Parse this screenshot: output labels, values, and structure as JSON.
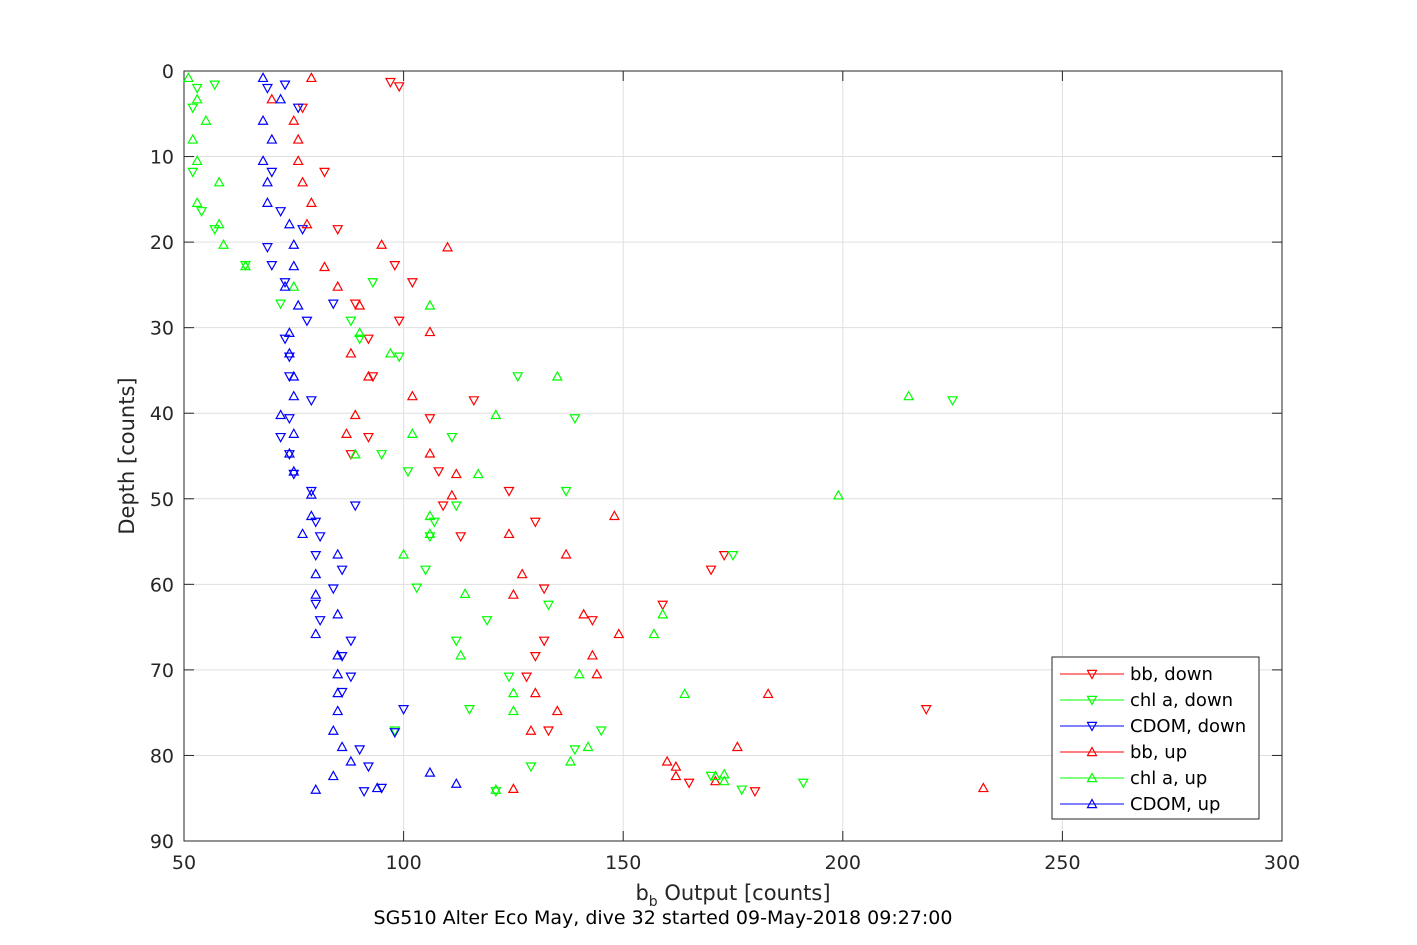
{
  "chart_data": {
    "type": "scatter",
    "title": "SG510 Alter Eco May, dive 32 started 09-May-2018 09:27:00",
    "xlabel": "b",
    "xlabel_sub": "b",
    "xlabel_rest": " Output [counts]",
    "ylabel": "Depth [counts]",
    "xlim": [
      50,
      300
    ],
    "ylim": [
      0,
      90
    ],
    "y_reversed": true,
    "grid": true,
    "legend_position": "bottom-right",
    "x_ticks": [
      50,
      100,
      150,
      200,
      250,
      300
    ],
    "y_ticks": [
      0,
      10,
      20,
      30,
      40,
      50,
      60,
      70,
      80,
      90
    ],
    "series": [
      {
        "name": "bb, down",
        "color": "#ff0000",
        "marker": "triangle-down",
        "points": [
          [
            97,
            1.3
          ],
          [
            99,
            1.8
          ],
          [
            77,
            4.3
          ],
          [
            82,
            11.8
          ],
          [
            85,
            18.5
          ],
          [
            98,
            22.7
          ],
          [
            102,
            24.7
          ],
          [
            89,
            27.2
          ],
          [
            99,
            29.2
          ],
          [
            92,
            31.3
          ],
          [
            93,
            35.7
          ],
          [
            116,
            38.5
          ],
          [
            106,
            40.6
          ],
          [
            92,
            42.8
          ],
          [
            88,
            44.8
          ],
          [
            108,
            46.8
          ],
          [
            124,
            49.1
          ],
          [
            109,
            50.8
          ],
          [
            130,
            52.7
          ],
          [
            113,
            54.4
          ],
          [
            173,
            56.6
          ],
          [
            170,
            58.3
          ],
          [
            132,
            60.5
          ],
          [
            159,
            62.4
          ],
          [
            143,
            64.2
          ],
          [
            132,
            66.6
          ],
          [
            130,
            68.4
          ],
          [
            128,
            70.8
          ],
          [
            133,
            77.1
          ],
          [
            165,
            83.2
          ],
          [
            180,
            84.2
          ],
          [
            219,
            74.6
          ]
        ]
      },
      {
        "name": "chl a, down",
        "color": "#00ff00",
        "marker": "triangle-down",
        "points": [
          [
            57,
            1.6
          ],
          [
            53,
            2.0
          ],
          [
            52,
            4.3
          ],
          [
            52,
            11.8
          ],
          [
            54,
            16.4
          ],
          [
            57,
            18.5
          ],
          [
            64,
            22.7
          ],
          [
            93,
            24.7
          ],
          [
            72,
            27.2
          ],
          [
            88,
            29.2
          ],
          [
            90,
            31.3
          ],
          [
            99,
            33.4
          ],
          [
            126,
            35.7
          ],
          [
            225,
            38.5
          ],
          [
            139,
            40.6
          ],
          [
            111,
            42.8
          ],
          [
            95,
            44.8
          ],
          [
            101,
            46.8
          ],
          [
            137,
            49.1
          ],
          [
            112,
            50.8
          ],
          [
            107,
            52.7
          ],
          [
            106,
            54.4
          ],
          [
            175,
            56.6
          ],
          [
            105,
            58.3
          ],
          [
            103,
            60.4
          ],
          [
            133,
            62.4
          ],
          [
            119,
            64.2
          ],
          [
            112,
            66.6
          ],
          [
            124,
            70.8
          ],
          [
            115,
            74.6
          ],
          [
            145,
            77.1
          ],
          [
            98,
            77.1
          ],
          [
            139,
            79.3
          ],
          [
            129,
            81.3
          ],
          [
            170,
            82.4
          ],
          [
            191,
            83.2
          ],
          [
            177,
            84.0
          ],
          [
            121,
            84.2
          ]
        ]
      },
      {
        "name": "CDOM, down",
        "color": "#0000ff",
        "marker": "triangle-down",
        "points": [
          [
            73,
            1.6
          ],
          [
            69,
            2.0
          ],
          [
            76,
            4.3
          ],
          [
            70,
            11.8
          ],
          [
            72,
            16.4
          ],
          [
            77,
            18.5
          ],
          [
            69,
            20.6
          ],
          [
            70,
            22.7
          ],
          [
            73,
            24.7
          ],
          [
            84,
            27.2
          ],
          [
            78,
            29.2
          ],
          [
            73,
            31.3
          ],
          [
            74,
            33.4
          ],
          [
            74,
            35.7
          ],
          [
            79,
            38.5
          ],
          [
            74,
            40.6
          ],
          [
            72,
            42.8
          ],
          [
            74,
            44.8
          ],
          [
            75,
            47.1
          ],
          [
            79,
            49.1
          ],
          [
            89,
            50.8
          ],
          [
            80,
            52.7
          ],
          [
            81,
            54.4
          ],
          [
            80,
            56.6
          ],
          [
            86,
            58.3
          ],
          [
            84,
            60.5
          ],
          [
            80,
            62.3
          ],
          [
            81,
            64.2
          ],
          [
            88,
            66.6
          ],
          [
            86,
            68.4
          ],
          [
            88,
            70.8
          ],
          [
            86,
            72.6
          ],
          [
            100,
            74.6
          ],
          [
            98,
            77.3
          ],
          [
            90,
            79.3
          ],
          [
            92,
            81.3
          ],
          [
            91,
            84.2
          ],
          [
            95,
            83.8
          ]
        ]
      },
      {
        "name": "bb, up",
        "color": "#ff0000",
        "marker": "triangle-up",
        "points": [
          [
            79,
            0.8
          ],
          [
            70,
            3.3
          ],
          [
            75,
            5.8
          ],
          [
            76,
            8.0
          ],
          [
            76,
            10.5
          ],
          [
            77,
            13.0
          ],
          [
            79,
            15.4
          ],
          [
            78,
            17.9
          ],
          [
            110,
            20.6
          ],
          [
            95,
            20.3
          ],
          [
            82,
            22.9
          ],
          [
            85,
            25.2
          ],
          [
            90,
            27.4
          ],
          [
            106,
            30.5
          ],
          [
            88,
            33.0
          ],
          [
            92,
            35.7
          ],
          [
            102,
            38.0
          ],
          [
            89,
            40.2
          ],
          [
            87,
            42.4
          ],
          [
            106,
            44.7
          ],
          [
            112,
            47.1
          ],
          [
            111,
            49.6
          ],
          [
            148,
            52.0
          ],
          [
            124,
            54.1
          ],
          [
            137,
            56.5
          ],
          [
            127,
            58.8
          ],
          [
            125,
            61.2
          ],
          [
            141,
            63.5
          ],
          [
            149,
            65.8
          ],
          [
            143,
            68.3
          ],
          [
            144,
            70.5
          ],
          [
            130,
            72.7
          ],
          [
            183,
            72.8
          ],
          [
            135,
            74.8
          ],
          [
            129,
            77.1
          ],
          [
            176,
            79.0
          ],
          [
            160,
            80.7
          ],
          [
            162,
            81.3
          ],
          [
            162,
            82.4
          ],
          [
            171,
            83.0
          ],
          [
            232,
            83.8
          ],
          [
            125,
            83.9
          ]
        ]
      },
      {
        "name": "chl a, up",
        "color": "#00ff00",
        "marker": "triangle-up",
        "points": [
          [
            51,
            0.8
          ],
          [
            53,
            3.3
          ],
          [
            55,
            5.8
          ],
          [
            52,
            8.0
          ],
          [
            53,
            10.5
          ],
          [
            58,
            13.0
          ],
          [
            53,
            15.4
          ],
          [
            58,
            17.9
          ],
          [
            59,
            20.3
          ],
          [
            64,
            22.8
          ],
          [
            75,
            25.2
          ],
          [
            106,
            27.4
          ],
          [
            90,
            30.6
          ],
          [
            97,
            33.0
          ],
          [
            135,
            35.7
          ],
          [
            215,
            38.0
          ],
          [
            121,
            40.2
          ],
          [
            102,
            42.4
          ],
          [
            89,
            44.8
          ],
          [
            117,
            47.1
          ],
          [
            199,
            49.6
          ],
          [
            106,
            52.0
          ],
          [
            106,
            54.1
          ],
          [
            100,
            56.5
          ],
          [
            114,
            61.1
          ],
          [
            159,
            63.5
          ],
          [
            157,
            65.8
          ],
          [
            113,
            68.3
          ],
          [
            140,
            70.5
          ],
          [
            164,
            72.8
          ],
          [
            125,
            72.7
          ],
          [
            125,
            74.8
          ],
          [
            142,
            79.0
          ],
          [
            138,
            80.7
          ],
          [
            173,
            82.2
          ],
          [
            171,
            82.4
          ],
          [
            173,
            83.0
          ],
          [
            121,
            84.0
          ]
        ]
      },
      {
        "name": "CDOM, up",
        "color": "#0000ff",
        "marker": "triangle-up",
        "points": [
          [
            68,
            0.8
          ],
          [
            72,
            3.3
          ],
          [
            68,
            5.8
          ],
          [
            70,
            8.0
          ],
          [
            68,
            10.5
          ],
          [
            69,
            13.0
          ],
          [
            69,
            15.4
          ],
          [
            74,
            17.9
          ],
          [
            75,
            20.3
          ],
          [
            75,
            22.8
          ],
          [
            73,
            25.2
          ],
          [
            76,
            27.4
          ],
          [
            74,
            30.6
          ],
          [
            74,
            33.0
          ],
          [
            75,
            35.7
          ],
          [
            75,
            38.0
          ],
          [
            72,
            40.2
          ],
          [
            75,
            42.4
          ],
          [
            74,
            44.7
          ],
          [
            75,
            46.8
          ],
          [
            79,
            49.5
          ],
          [
            79,
            52.0
          ],
          [
            77,
            54.1
          ],
          [
            85,
            56.5
          ],
          [
            80,
            58.8
          ],
          [
            80,
            61.2
          ],
          [
            85,
            63.5
          ],
          [
            80,
            65.8
          ],
          [
            85,
            68.3
          ],
          [
            85,
            70.5
          ],
          [
            85,
            72.7
          ],
          [
            85,
            74.8
          ],
          [
            84,
            77.1
          ],
          [
            86,
            79.0
          ],
          [
            88,
            80.7
          ],
          [
            106,
            82.0
          ],
          [
            84,
            82.4
          ],
          [
            112,
            83.3
          ],
          [
            80,
            84.0
          ],
          [
            94,
            83.8
          ]
        ]
      }
    ]
  }
}
